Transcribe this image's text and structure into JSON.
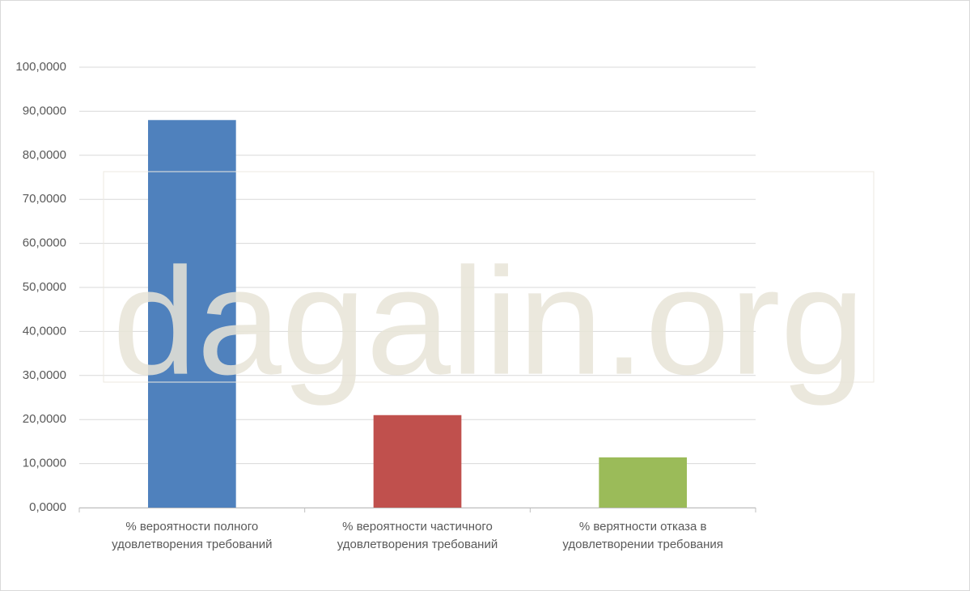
{
  "chart_data": {
    "type": "bar",
    "categories": [
      "% вероятности полного\nудовлетворения требований",
      "% вероятности частичного\nудовлетворения требований",
      "% верятности отказа в\nудовлетворении требования"
    ],
    "values": [
      88,
      21,
      11.4
    ],
    "colors": [
      "#4f81bd",
      "#c0504d",
      "#9bbb59"
    ],
    "ylim": [
      0,
      100
    ],
    "yticks": [
      {
        "value": 0,
        "label": "0,0000"
      },
      {
        "value": 10,
        "label": "10,0000"
      },
      {
        "value": 20,
        "label": "20,0000"
      },
      {
        "value": 30,
        "label": "30,0000"
      },
      {
        "value": 40,
        "label": "40,0000"
      },
      {
        "value": 50,
        "label": "50,0000"
      },
      {
        "value": 60,
        "label": "60,0000"
      },
      {
        "value": 70,
        "label": "70,0000"
      },
      {
        "value": 80,
        "label": "80,0000"
      },
      {
        "value": 90,
        "label": "90,0000"
      },
      {
        "value": 100,
        "label": "100,0000"
      }
    ],
    "grid": true,
    "watermark": "dagalin.org"
  }
}
